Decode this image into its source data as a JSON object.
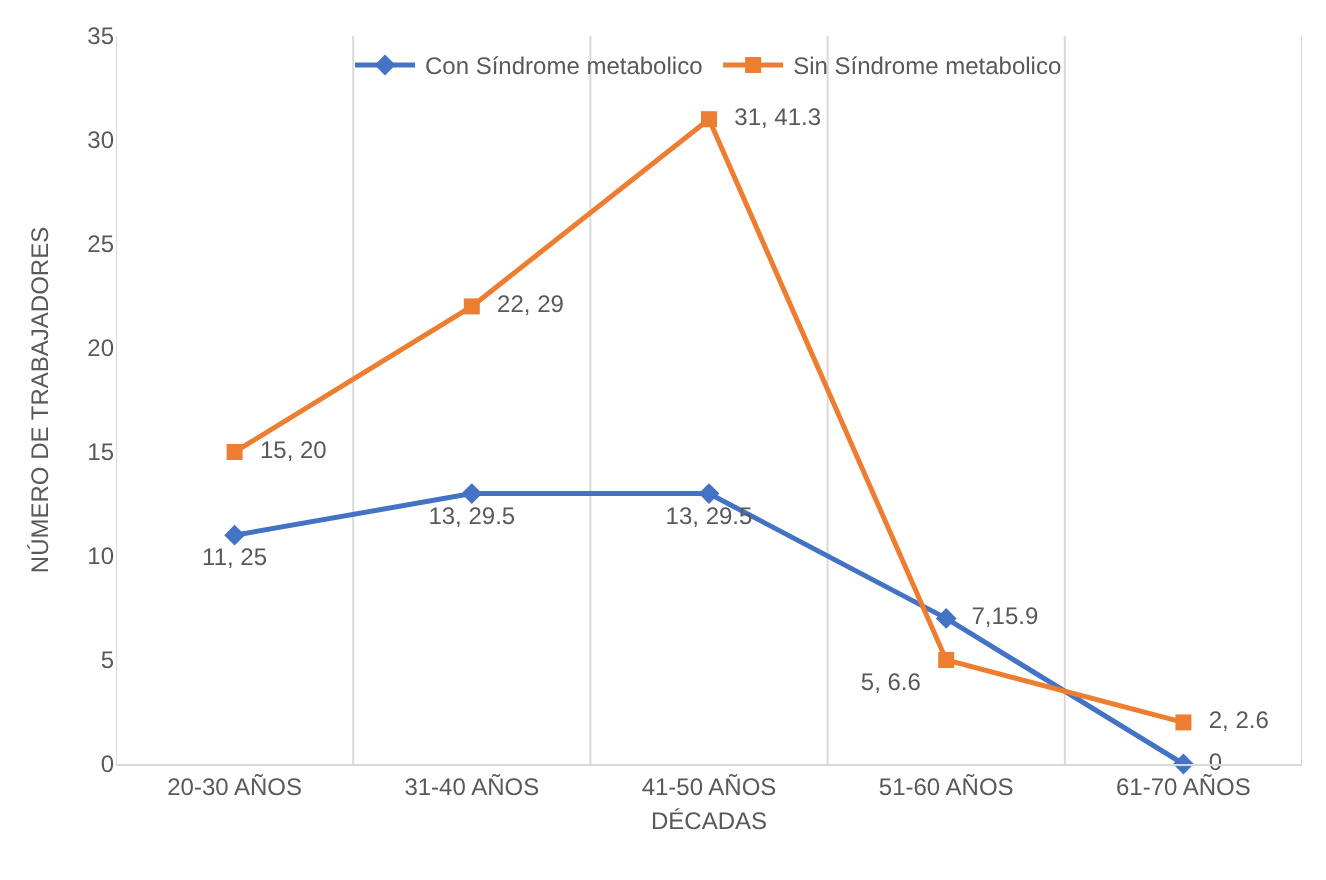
{
  "chart_data": {
    "type": "line",
    "xlabel": "DÉCADAS",
    "ylabel": "NÚMERO DE TRABAJADORES",
    "categories": [
      "20-30 AÑOS",
      "31-40 AÑOS",
      "41-50 AÑOS",
      "51-60 AÑOS",
      "61-70 AÑOS"
    ],
    "series": [
      {
        "name": "Con Síndrome metabolico",
        "color": "#4472c4",
        "marker": "diamond",
        "values": [
          11,
          13,
          13,
          7,
          0
        ],
        "value_labels": [
          "11, 25",
          "13, 29.5",
          "13, 29.5",
          "7,15.9",
          "0"
        ]
      },
      {
        "name": "Sin Síndrome metabolico",
        "color": "#ed7d31",
        "marker": "square",
        "values": [
          15,
          22,
          31,
          5,
          2
        ],
        "value_labels": [
          "15, 20",
          "22, 29",
          "31, 41.3",
          "5, 6.6",
          "2, 2.6"
        ]
      }
    ],
    "ylim": [
      0,
      35
    ],
    "yticks": [
      0,
      5,
      10,
      15,
      20,
      25,
      30,
      35
    ],
    "grid": "x",
    "legend": "top"
  }
}
